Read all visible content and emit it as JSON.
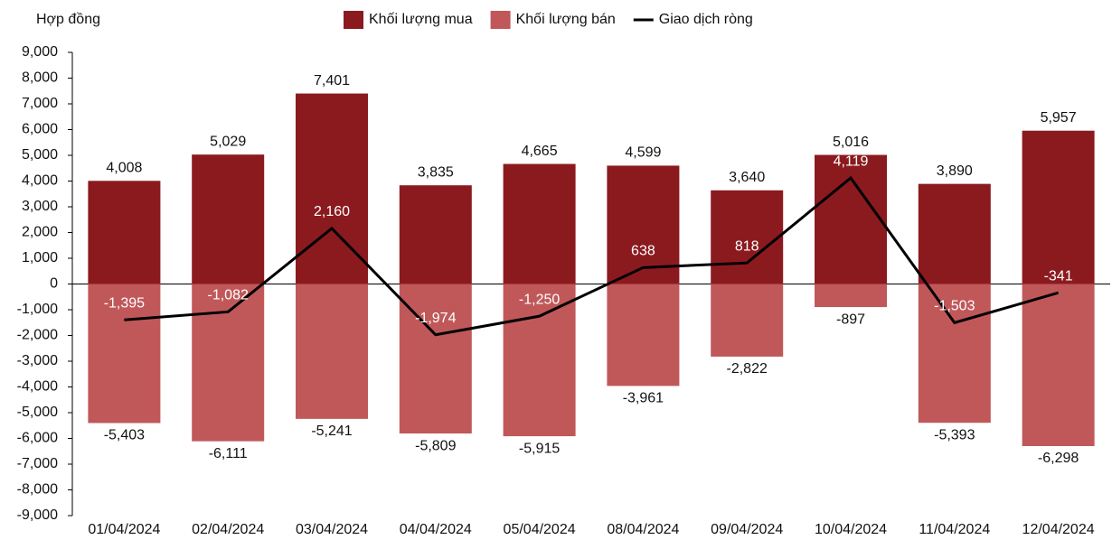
{
  "chart_data": {
    "type": "bar",
    "axis_title": "Hợp đồng",
    "categories": [
      "01/04/2024",
      "02/04/2024",
      "03/04/2024",
      "04/04/2024",
      "05/04/2024",
      "08/04/2024",
      "09/04/2024",
      "10/04/2024",
      "11/04/2024",
      "12/04/2024"
    ],
    "series": [
      {
        "name": "Khối lượng mua",
        "type": "bar",
        "color": "#8b1a1f",
        "values": [
          4008,
          5029,
          7401,
          3835,
          4665,
          4599,
          3640,
          5016,
          3890,
          5957
        ],
        "value_labels": [
          "4,008",
          "5,029",
          "7,401",
          "3,835",
          "4,665",
          "4,599",
          "3,640",
          "5,016",
          "3,890",
          "5,957"
        ]
      },
      {
        "name": "Khối lượng bán",
        "type": "bar",
        "color": "#c0585a",
        "values": [
          -5403,
          -6111,
          -5241,
          -5809,
          -5915,
          -3961,
          -2822,
          -897,
          -5393,
          -6298
        ],
        "value_labels": [
          "-5,403",
          "-6,111",
          "-5,241",
          "-5,809",
          "-5,915",
          "-3,961",
          "-2,822",
          "-897",
          "-5,393",
          "-6,298"
        ]
      },
      {
        "name": "Giao dịch ròng",
        "type": "line",
        "color": "#000000",
        "values": [
          -1395,
          -1082,
          2160,
          -1974,
          -1250,
          638,
          818,
          4119,
          -1503,
          -341
        ],
        "value_labels": [
          "-1,395",
          "-1,082",
          "2,160",
          "-1,974",
          "-1,250",
          "638",
          "818",
          "4,119",
          "-1,503",
          "-341"
        ]
      }
    ],
    "ylim": [
      -9000,
      9000
    ],
    "yticks": [
      {
        "value": -9000,
        "label": "-9,000"
      },
      {
        "value": -8000,
        "label": "-8,000"
      },
      {
        "value": -7000,
        "label": "-7,000"
      },
      {
        "value": -6000,
        "label": "-6,000"
      },
      {
        "value": -5000,
        "label": "-5,000"
      },
      {
        "value": -4000,
        "label": "-4,000"
      },
      {
        "value": -3000,
        "label": "-3,000"
      },
      {
        "value": -2000,
        "label": "-2,000"
      },
      {
        "value": -1000,
        "label": "-1,000"
      },
      0,
      {
        "value": 1000,
        "label": "1,000"
      },
      {
        "value": 2000,
        "label": "2,000"
      },
      {
        "value": 3000,
        "label": "3,000"
      },
      {
        "value": 4000,
        "label": "4,000"
      },
      {
        "value": 5000,
        "label": "5,000"
      },
      {
        "value": 6000,
        "label": "6,000"
      },
      {
        "value": 7000,
        "label": "7,000"
      },
      {
        "value": 8000,
        "label": "8,000"
      },
      {
        "value": 9000,
        "label": "9,000"
      }
    ],
    "legend": "top"
  }
}
